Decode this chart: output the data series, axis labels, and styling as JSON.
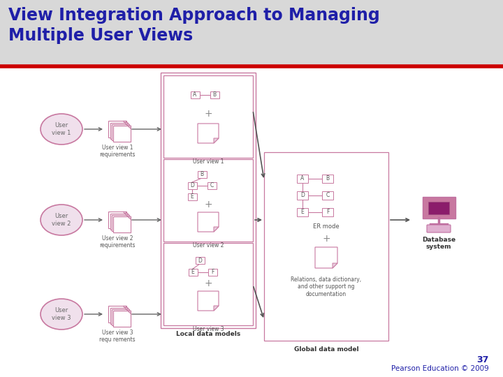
{
  "title_line1": "View Integration Approach to Managing",
  "title_line2": "Multiple User Views",
  "title_color": "#1F1FA8",
  "title_fontsize": 17,
  "slide_color": "#D8D8D8",
  "content_bg": "#F0F0F0",
  "footer_text": "Pearson Education © 2009",
  "footer_page": "37",
  "red_line_color": "#CC0000",
  "pink": "#C878A0",
  "pink_light": "#F0E0EC",
  "user_views": [
    "User\nview 1",
    "User\nview 2",
    "User\nview 3"
  ],
  "user_req_labels": [
    "User view 1\nrequirements",
    "User view 2\nrequirements",
    "User view 3\nrequ rements"
  ],
  "local_labels": [
    "User view 1",
    "User view 2",
    "User view 3"
  ],
  "global_label": "ER mode",
  "global_sub_label": "Global data model",
  "local_sub_label": "Local data models",
  "relations_text": "Relations, data dictionary,\nand other support ng\ndocumentation",
  "database_label": "Database\nsystem"
}
